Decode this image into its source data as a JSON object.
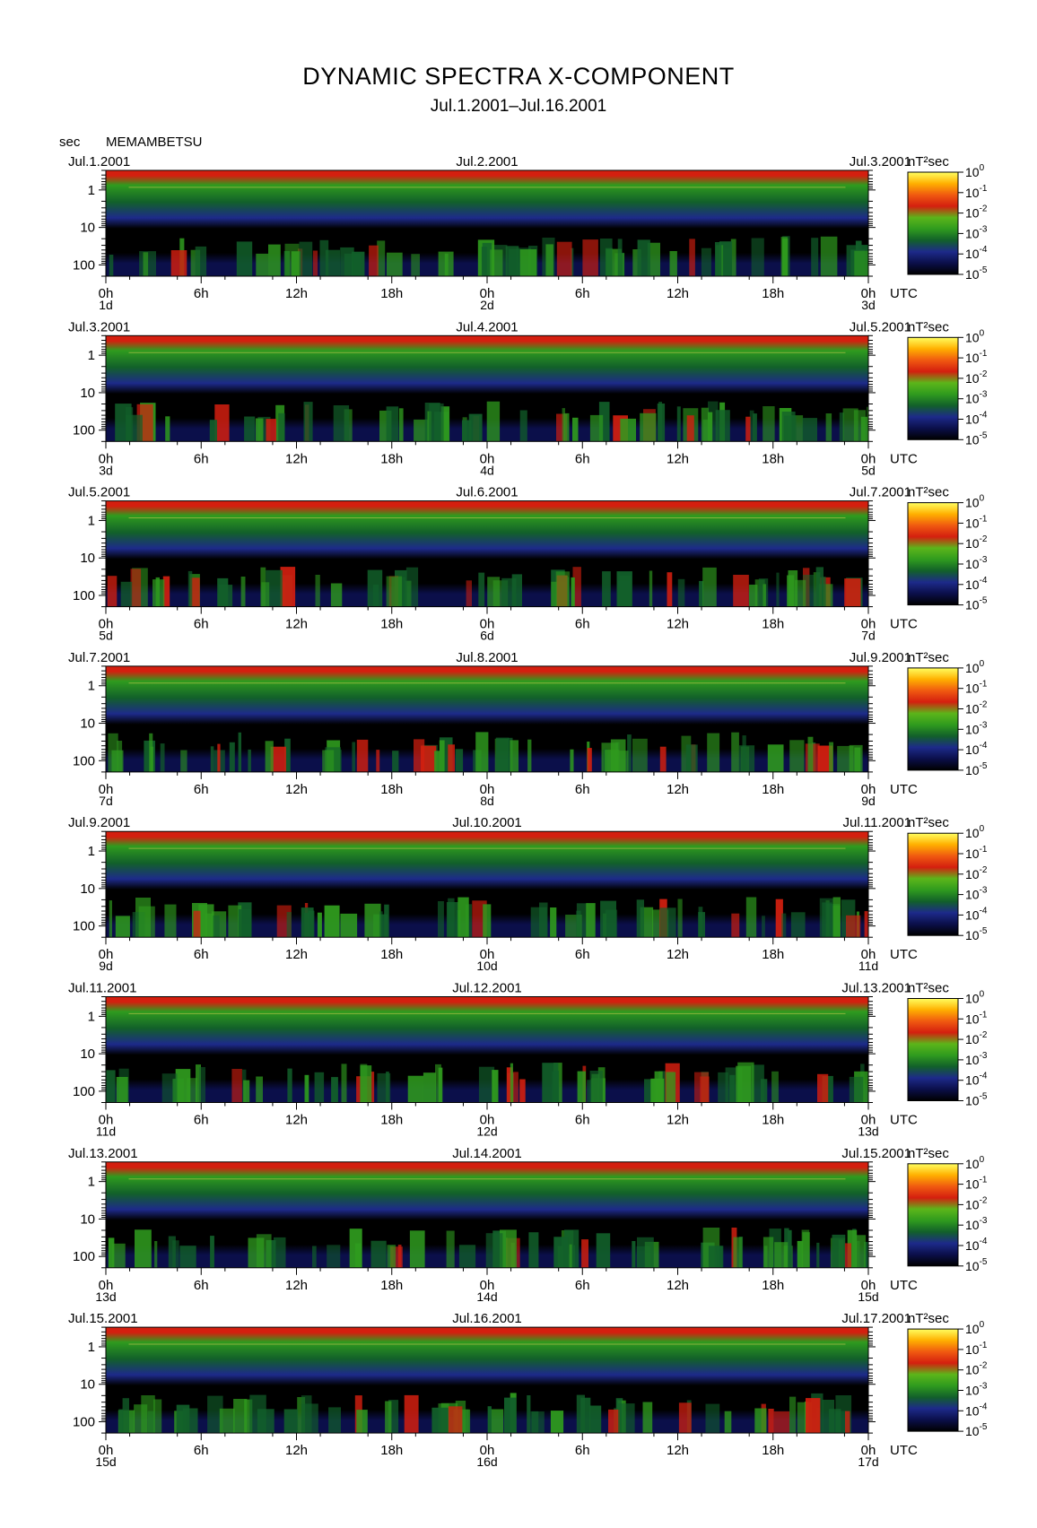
{
  "title": "DYNAMIC SPECTRA X-COMPONENT",
  "subtitle": "Jul.1.2001–Jul.16.2001",
  "y_unit": "sec",
  "station": "MEMAMBETSU",
  "x_unit": "UTC",
  "colorbar_unit": "nT²sec",
  "colorbar_colors": [
    "#000000",
    "#0b0f4a",
    "#1d2a8a",
    "#12602a",
    "#2f9b1e",
    "#5cb51a",
    "#d41f0f",
    "#f05a10",
    "#ffb000",
    "#ffff60"
  ],
  "y_ticks": [
    "1",
    "10",
    "100"
  ],
  "colorbar_ticks": [
    {
      "base": "10",
      "exp": "0"
    },
    {
      "base": "10",
      "exp": "-1"
    },
    {
      "base": "10",
      "exp": "-2"
    },
    {
      "base": "10",
      "exp": "-3"
    },
    {
      "base": "10",
      "exp": "-4"
    },
    {
      "base": "10",
      "exp": "-5"
    }
  ],
  "chart_data": {
    "type": "heatmap",
    "x_tick_hours": [
      "0h",
      "6h",
      "12h",
      "18h",
      "0h",
      "6h",
      "12h",
      "18h",
      "0h"
    ],
    "y_scale": "log",
    "y_range_sec": [
      0.3,
      200
    ],
    "colorbar_range": [
      "1e-5",
      "1e0"
    ],
    "panels": [
      {
        "date_left": "Jul.1.2001",
        "date_mid": "Jul.2.2001",
        "date_right": "Jul.3.2001",
        "day_start": "1d",
        "day_mid": "2d",
        "day_end": "3d"
      },
      {
        "date_left": "Jul.3.2001",
        "date_mid": "Jul.4.2001",
        "date_right": "Jul.5.2001",
        "day_start": "3d",
        "day_mid": "4d",
        "day_end": "5d"
      },
      {
        "date_left": "Jul.5.2001",
        "date_mid": "Jul.6.2001",
        "date_right": "Jul.7.2001",
        "day_start": "5d",
        "day_mid": "6d",
        "day_end": "7d"
      },
      {
        "date_left": "Jul.7.2001",
        "date_mid": "Jul.8.2001",
        "date_right": "Jul.9.2001",
        "day_start": "7d",
        "day_mid": "8d",
        "day_end": "9d"
      },
      {
        "date_left": "Jul.9.2001",
        "date_mid": "Jul.10.2001",
        "date_right": "Jul.11.2001",
        "day_start": "9d",
        "day_mid": "10d",
        "day_end": "11d"
      },
      {
        "date_left": "Jul.11.2001",
        "date_mid": "Jul.12.2001",
        "date_right": "Jul.13.2001",
        "day_start": "11d",
        "day_mid": "12d",
        "day_end": "13d"
      },
      {
        "date_left": "Jul.13.2001",
        "date_mid": "Jul.14.2001",
        "date_right": "Jul.15.2001",
        "day_start": "13d",
        "day_mid": "14d",
        "day_end": "15d"
      },
      {
        "date_left": "Jul.15.2001",
        "date_mid": "Jul.16.2001",
        "date_right": "Jul.17.2001",
        "day_start": "15d",
        "day_mid": "16d",
        "day_end": "17d"
      }
    ]
  }
}
